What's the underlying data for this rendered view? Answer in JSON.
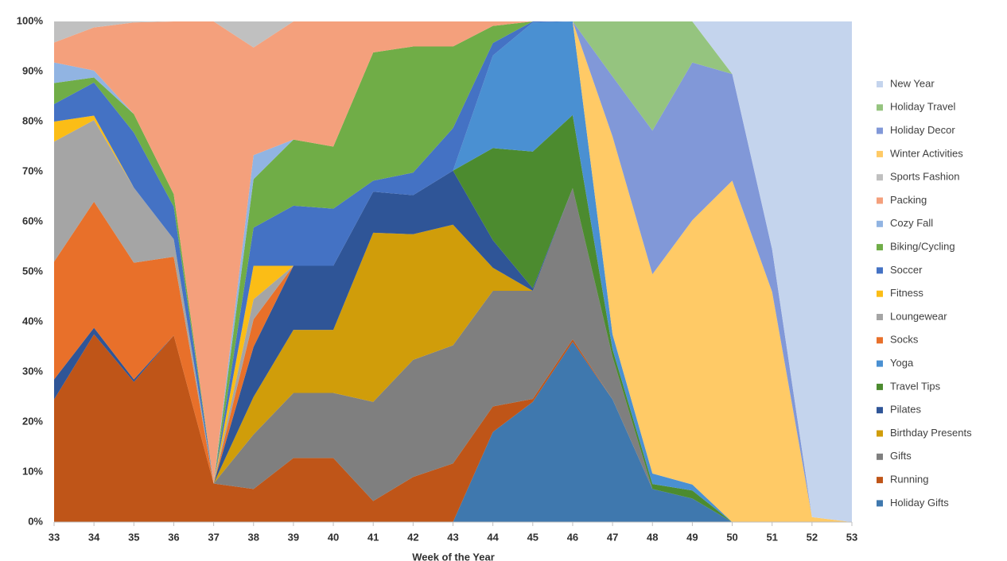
{
  "chart_data": {
    "type": "stacked-area-percent",
    "x_label": "Week of the Year",
    "x": [
      33,
      34,
      35,
      36,
      37,
      38,
      39,
      40,
      41,
      42,
      43,
      44,
      45,
      46,
      47,
      48,
      49,
      50,
      51,
      52,
      53
    ],
    "xlim": [
      33,
      53
    ],
    "xticks": [
      33,
      34,
      35,
      36,
      37,
      38,
      39,
      40,
      41,
      42,
      43,
      44,
      45,
      46,
      47,
      48,
      49,
      50,
      51,
      52,
      53
    ],
    "ylim": [
      0,
      100
    ],
    "yticks": [
      {
        "value": 0,
        "label": "0%"
      },
      {
        "value": 10,
        "label": "10%"
      },
      {
        "value": 20,
        "label": "20%"
      },
      {
        "value": 30,
        "label": "30%"
      },
      {
        "value": 40,
        "label": "40%"
      },
      {
        "value": 50,
        "label": "50%"
      },
      {
        "value": 60,
        "label": "60%"
      },
      {
        "value": 70,
        "label": "70%"
      },
      {
        "value": 80,
        "label": "80%"
      },
      {
        "value": 90,
        "label": "90%"
      },
      {
        "value": 100,
        "label": "100%"
      }
    ],
    "grid": false,
    "legend": "right",
    "series": [
      {
        "name": "Holiday Gifts",
        "color": "#3f78ae",
        "values": [
          0,
          0,
          0,
          0,
          0,
          0,
          0,
          0,
          0,
          0,
          0,
          18,
          24,
          36,
          24.5,
          6.6,
          4.7,
          0,
          0,
          0,
          0
        ]
      },
      {
        "name": "Running",
        "color": "#bf5518",
        "values": [
          24.5,
          37.5,
          28,
          37.3,
          7.7,
          6.6,
          12.8,
          12.8,
          4.2,
          9,
          11.7,
          5.1,
          0.6,
          0.5,
          0,
          0,
          0,
          0,
          0,
          0,
          0
        ]
      },
      {
        "name": "Gifts",
        "color": "#7f7f7f",
        "values": [
          0,
          0,
          0,
          0,
          0,
          10.9,
          13,
          13,
          19.8,
          23.4,
          23.6,
          23.1,
          21.6,
          30.2,
          8.5,
          0,
          0,
          0,
          0,
          0,
          0
        ]
      },
      {
        "name": "Birthday Presents",
        "color": "#d09d0a",
        "values": [
          0,
          0,
          0,
          0,
          0,
          7.5,
          12.6,
          12.6,
          33.8,
          25.1,
          24.1,
          4.6,
          0,
          0,
          0,
          0,
          0,
          0,
          0,
          0,
          0
        ]
      },
      {
        "name": "Pilates",
        "color": "#2f5597",
        "values": [
          4,
          1.3,
          0.5,
          0,
          0,
          10,
          12.8,
          12.8,
          8.2,
          7.8,
          10.8,
          5.5,
          0.5,
          0,
          0,
          0,
          0,
          0,
          0,
          0,
          0
        ]
      },
      {
        "name": "Travel Tips",
        "color": "#4c8b2f",
        "values": [
          0,
          0,
          0,
          0,
          0,
          0,
          0,
          0,
          0,
          0,
          0,
          18.4,
          27.3,
          14.6,
          1.5,
          1,
          1.6,
          0,
          0,
          0,
          0
        ]
      },
      {
        "name": "Yoga",
        "color": "#4a90d2",
        "values": [
          0,
          0,
          0,
          0,
          0,
          0,
          0,
          0,
          0,
          0,
          0,
          18.5,
          25.8,
          18.7,
          3,
          2.1,
          1.2,
          0,
          0,
          0,
          0
        ]
      },
      {
        "name": "Socks",
        "color": "#e8702a",
        "values": [
          23.5,
          25.2,
          23.3,
          15.7,
          0,
          5.5,
          0,
          0,
          0,
          0,
          0,
          0,
          0,
          0,
          0,
          0,
          0,
          0,
          0,
          0,
          0
        ]
      },
      {
        "name": "Loungewear",
        "color": "#a5a5a5",
        "values": [
          24,
          16.3,
          15,
          3.5,
          0,
          4,
          0,
          0,
          0,
          0,
          0,
          0,
          0,
          0,
          0,
          0,
          0,
          0,
          0,
          0,
          0
        ]
      },
      {
        "name": "Fitness",
        "color": "#fbbd16",
        "values": [
          4,
          0.9,
          0,
          0,
          0,
          6.7,
          0,
          0,
          0,
          0,
          0,
          0,
          0,
          0,
          0,
          0,
          0,
          0,
          0,
          0,
          0
        ]
      },
      {
        "name": "Soccer",
        "color": "#4472c4",
        "values": [
          3.5,
          6.6,
          11,
          6.5,
          0,
          7.6,
          12,
          11.4,
          2.2,
          4.5,
          8.5,
          2.5,
          0.2,
          0,
          0,
          0,
          0,
          0,
          0,
          0,
          0
        ]
      },
      {
        "name": "Biking/Cycling",
        "color": "#70ad47",
        "values": [
          4.2,
          1,
          3.7,
          2.5,
          0,
          9.7,
          13.2,
          12.4,
          25.6,
          25.2,
          16.3,
          3.4,
          0,
          0,
          0,
          0,
          0,
          0,
          0,
          0,
          0
        ]
      },
      {
        "name": "Cozy Fall",
        "color": "#91b4e2",
        "values": [
          4.1,
          1.4,
          0,
          0,
          0,
          4.8,
          0,
          0,
          0,
          0,
          0,
          0,
          0,
          0,
          0,
          0,
          0,
          0,
          0,
          0,
          0
        ]
      },
      {
        "name": "Packing",
        "color": "#f4a07c",
        "values": [
          4,
          8.6,
          18.3,
          34.5,
          92.3,
          21.5,
          23.6,
          25,
          6.2,
          5,
          5,
          0.9,
          0,
          0,
          0,
          0,
          0,
          0,
          0,
          0,
          0
        ]
      },
      {
        "name": "Sports Fashion",
        "color": "#c0c0c0",
        "values": [
          4.2,
          1.2,
          0.2,
          0,
          0,
          5.2,
          0,
          0,
          0,
          0,
          0,
          0,
          0,
          0,
          0,
          0,
          0,
          0,
          0,
          0,
          0
        ]
      },
      {
        "name": "Winter Activities",
        "color": "#ffca66",
        "values": [
          0,
          0,
          0,
          0,
          0,
          0,
          0,
          0,
          0,
          0,
          0,
          0,
          0,
          0,
          39.5,
          39.8,
          52.8,
          68.2,
          46,
          1,
          0
        ]
      },
      {
        "name": "Holiday Decor",
        "color": "#8198d8",
        "values": [
          0,
          0,
          0,
          0,
          0,
          0,
          0,
          0,
          0,
          0,
          0,
          0,
          0,
          0,
          12,
          28.7,
          31.5,
          21.3,
          8.5,
          0,
          0
        ]
      },
      {
        "name": "Holiday Travel",
        "color": "#95c47f",
        "values": [
          0,
          0,
          0,
          0,
          0,
          0,
          0,
          0,
          0,
          0,
          0,
          0,
          0,
          0,
          11,
          21.8,
          8.2,
          0,
          0,
          0,
          0
        ]
      },
      {
        "name": "New Year",
        "color": "#c4d4ed",
        "values": [
          0,
          0,
          0,
          0,
          0,
          0,
          0,
          0,
          0,
          0,
          0,
          0,
          0,
          0,
          0,
          0,
          0,
          10.5,
          45.5,
          99,
          100
        ]
      }
    ]
  }
}
